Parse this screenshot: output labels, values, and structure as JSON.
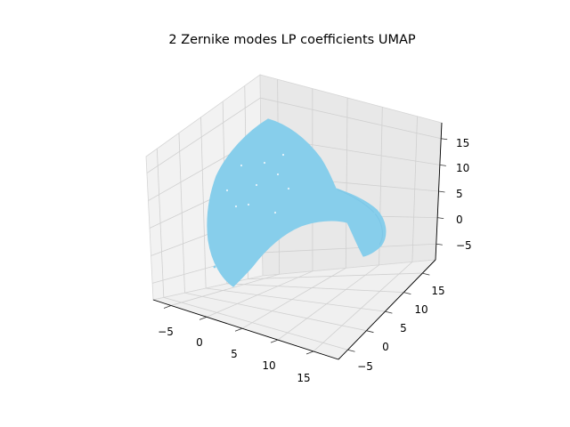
{
  "chart_data": {
    "type": "scatter",
    "projection": "3d",
    "title": "2 Zernike modes LP coefficients UMAP",
    "xlabel": "",
    "ylabel": "",
    "zlabel": "",
    "xlim": [
      -7.5,
      18.5
    ],
    "ylim": [
      -7.5,
      18.5
    ],
    "zlim": [
      -8,
      18
    ],
    "x_ticks": [
      "−5",
      "0",
      "5",
      "10",
      "15"
    ],
    "y_ticks": [
      "−5",
      "0",
      "5",
      "10",
      "15"
    ],
    "z_ticks": [
      "−5",
      "0",
      "5",
      "10",
      "15"
    ],
    "grid": true,
    "legend": "none",
    "point_color": "#87CEEB",
    "series": [
      {
        "shape": "curved saddle-shaped sheet of densely packed points",
        "points": [
          [
            -6,
            -2,
            2
          ],
          [
            -5,
            2,
            6
          ],
          [
            -4,
            5,
            10
          ],
          [
            -2,
            6,
            13
          ],
          [
            0,
            5,
            15
          ],
          [
            2,
            3,
            16
          ],
          [
            3,
            0,
            14
          ],
          [
            4,
            -2,
            11
          ],
          [
            5,
            -3,
            8
          ],
          [
            7,
            -1,
            6
          ],
          [
            9,
            2,
            5
          ],
          [
            11,
            4,
            4
          ],
          [
            13,
            6,
            3
          ],
          [
            15,
            7,
            2
          ],
          [
            16,
            5,
            -1
          ],
          [
            15,
            3,
            -3
          ],
          [
            12,
            4,
            0
          ],
          [
            9,
            3,
            0
          ],
          [
            6,
            1,
            -2
          ],
          [
            3,
            -2,
            -4
          ],
          [
            0,
            -4,
            -5
          ],
          [
            -3,
            -4,
            -4
          ],
          [
            -5,
            -3,
            -2
          ],
          [
            -6,
            -2,
            0
          ]
        ]
      }
    ]
  }
}
